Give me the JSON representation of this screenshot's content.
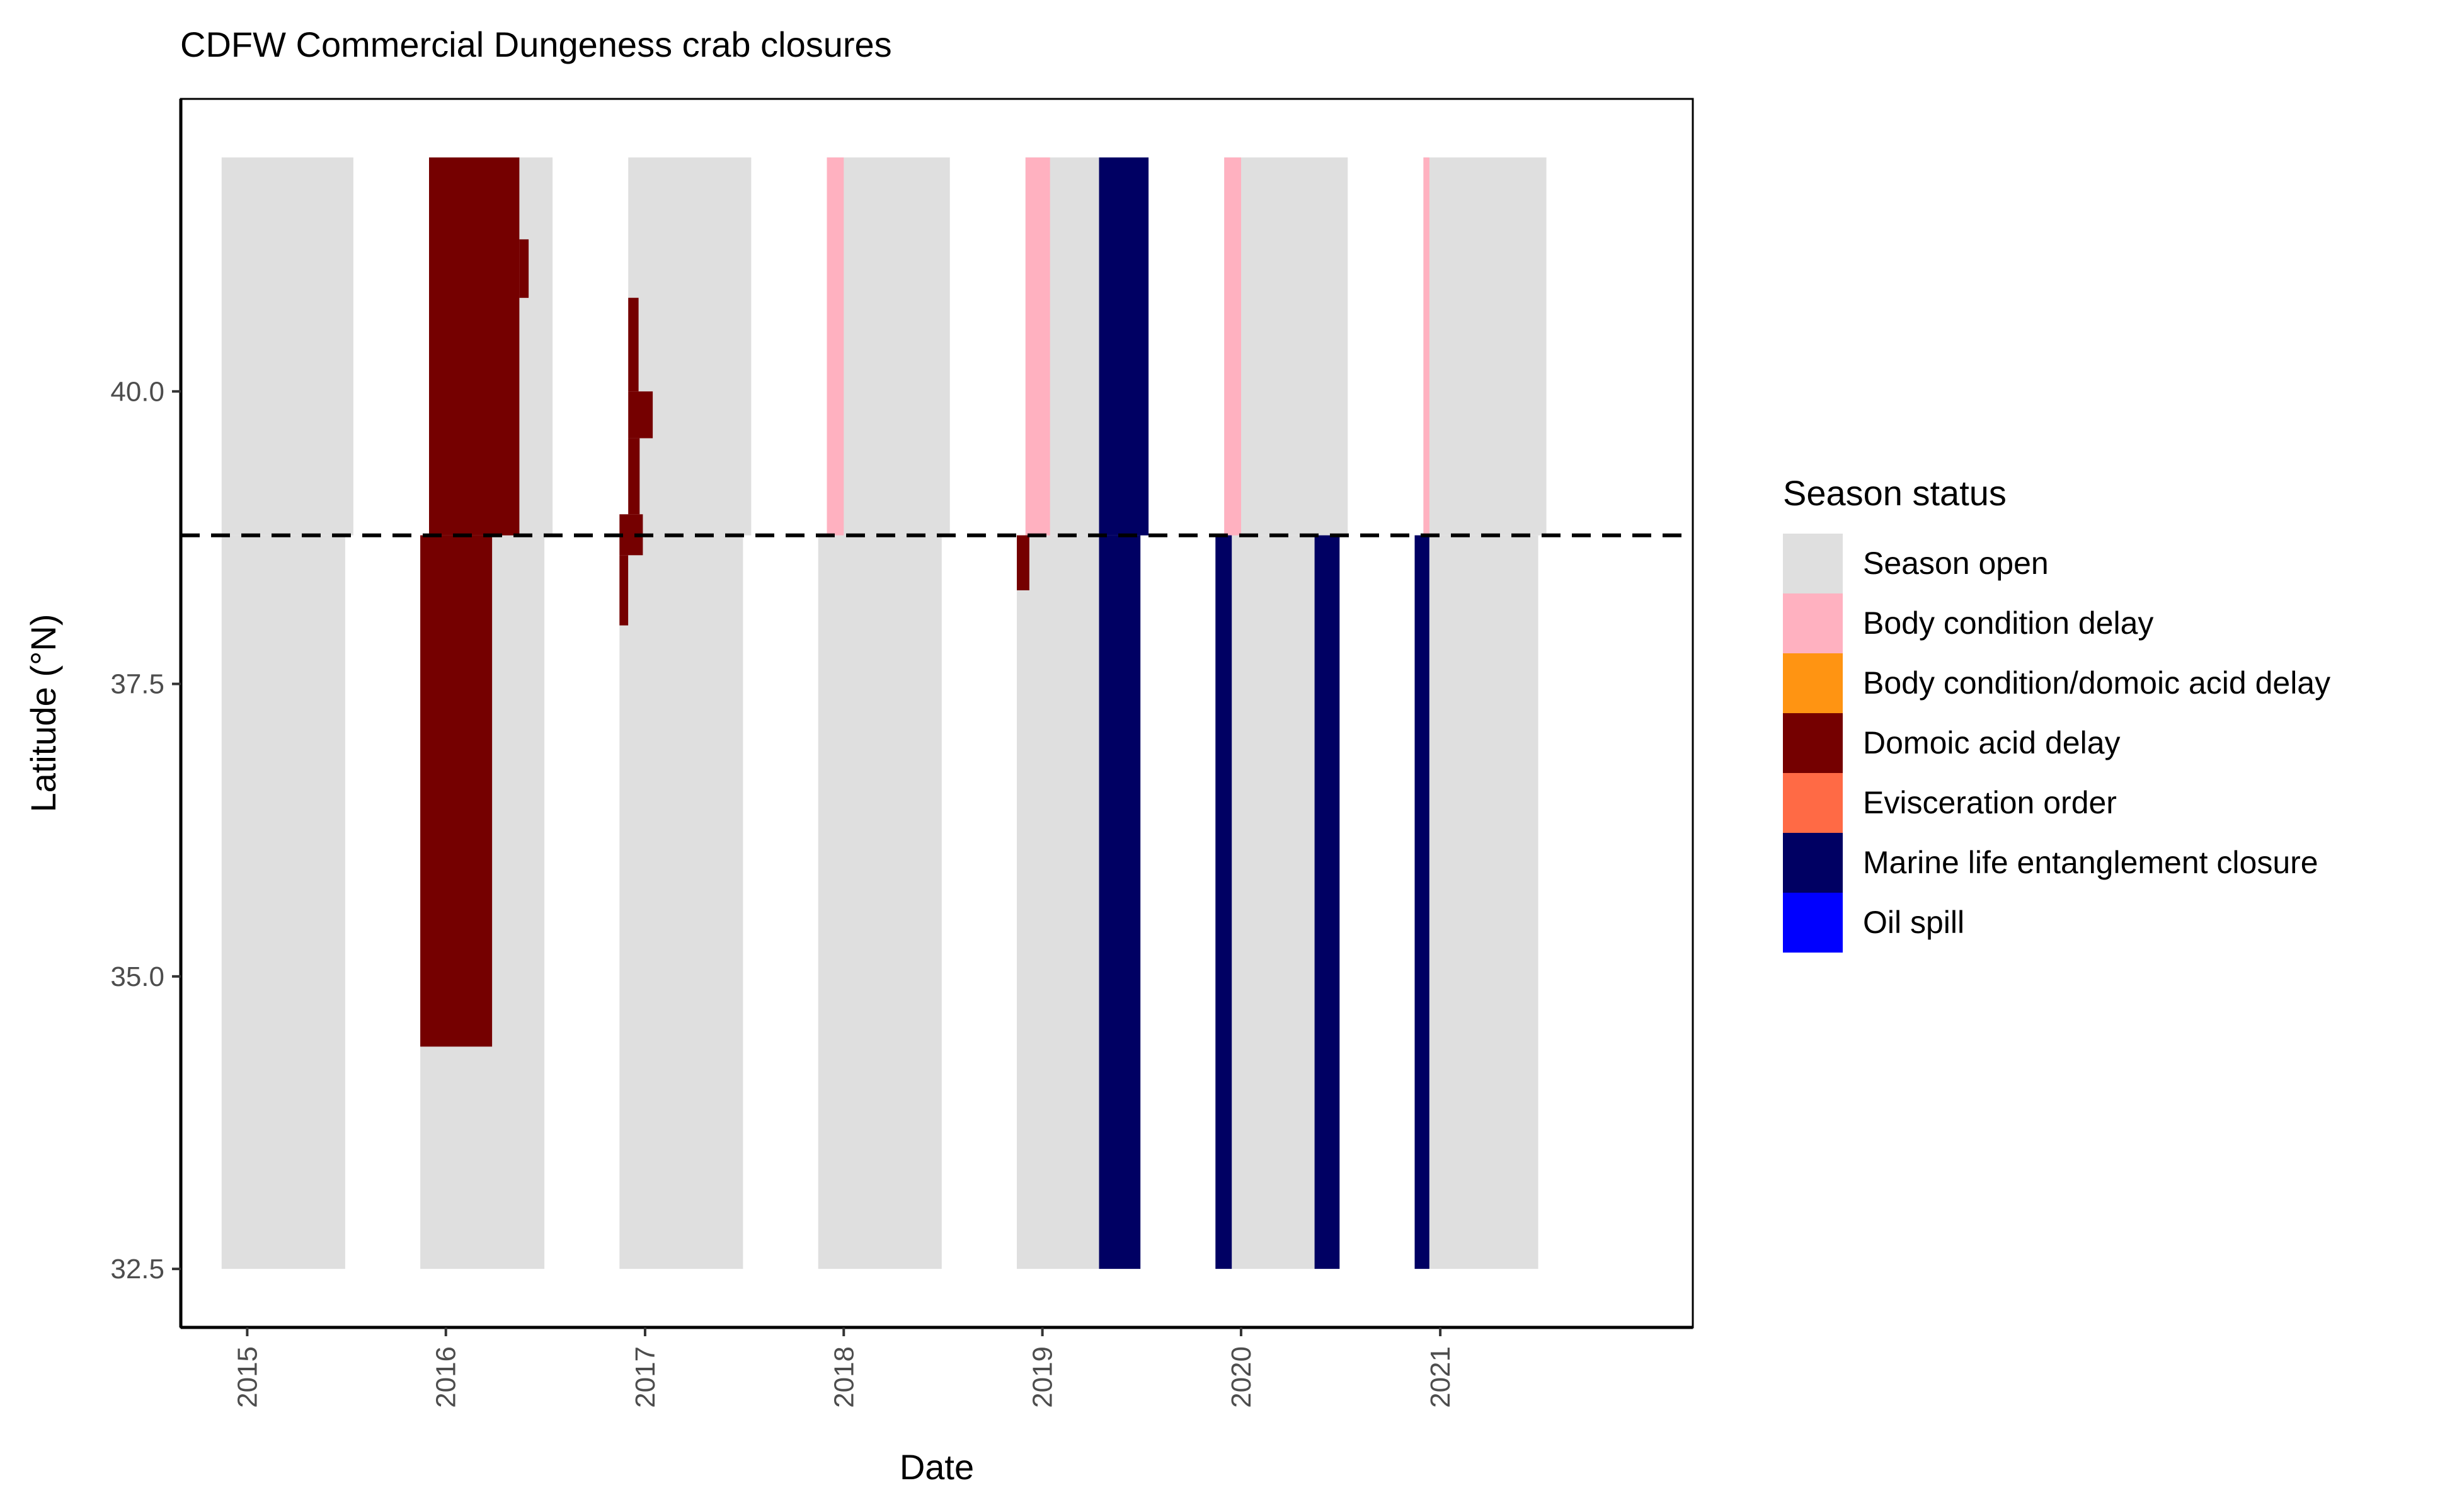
{
  "chart_data": {
    "type": "bar",
    "title": "CDFW Commercial Dungeness crab closures",
    "xlabel": "Date",
    "ylabel": "Latitude (°N)",
    "xlim": [
      "2014-09-01",
      "2022-04-10"
    ],
    "ylim": [
      32.0,
      42.5
    ],
    "x_ticks": [
      "2015",
      "2016",
      "2017",
      "2018",
      "2019",
      "2020",
      "2021"
    ],
    "y_ticks": [
      32.5,
      35.0,
      37.5,
      40.0
    ],
    "y_tick_labels": [
      "32.5",
      "35.0",
      "37.5",
      "40.0"
    ],
    "reference_line": {
      "y": 38.77,
      "style": "dashed"
    },
    "grid": false,
    "legend": {
      "title": "Season status",
      "placement": "right",
      "entries": [
        {
          "label": "Season open",
          "color": "#DFDFDF"
        },
        {
          "label": "Body condition delay",
          "color": "#FFB1C0"
        },
        {
          "label": "Body condition/domoic acid delay",
          "color": "#FF9412"
        },
        {
          "label": "Domoic acid delay",
          "color": "#750000"
        },
        {
          "label": "Evisceration order",
          "color": "#FF6A45"
        },
        {
          "label": "Marine life entanglement closure",
          "color": "#000063"
        },
        {
          "label": "Oil spill",
          "color": "#0000FF"
        }
      ]
    },
    "segments": [
      {
        "status": "Season open",
        "start": "2014-11-15",
        "end": "2015-07-15",
        "lat_min": 38.77,
        "lat_max": 42.0
      },
      {
        "status": "Season open",
        "start": "2014-11-15",
        "end": "2015-06-30",
        "lat_min": 32.5,
        "lat_max": 38.77
      },
      {
        "status": "Season open",
        "start": "2015-12-01",
        "end": "2016-07-15",
        "lat_min": 38.77,
        "lat_max": 42.0
      },
      {
        "status": "Season open",
        "start": "2015-11-15",
        "end": "2016-06-30",
        "lat_min": 32.5,
        "lat_max": 38.77
      },
      {
        "status": "Domoic acid delay",
        "start": "2015-12-01",
        "end": "2016-05-15",
        "lat_min": 38.77,
        "lat_max": 42.0
      },
      {
        "status": "Domoic acid delay",
        "start": "2016-05-15",
        "end": "2016-06-01",
        "lat_min": 40.8,
        "lat_max": 41.3
      },
      {
        "status": "Domoic acid delay",
        "start": "2015-11-15",
        "end": "2016-03-26",
        "lat_min": 34.4,
        "lat_max": 38.77
      },
      {
        "status": "Season open",
        "start": "2016-12-01",
        "end": "2017-07-15",
        "lat_min": 38.77,
        "lat_max": 42.0
      },
      {
        "status": "Season open",
        "start": "2016-11-15",
        "end": "2017-06-30",
        "lat_min": 32.5,
        "lat_max": 38.77
      },
      {
        "status": "Domoic acid delay",
        "start": "2016-12-01",
        "end": "2016-12-20",
        "lat_min": 40.0,
        "lat_max": 40.8
      },
      {
        "status": "Domoic acid delay",
        "start": "2016-12-01",
        "end": "2017-01-15",
        "lat_min": 39.6,
        "lat_max": 40.0
      },
      {
        "status": "Domoic acid delay",
        "start": "2016-12-01",
        "end": "2016-12-22",
        "lat_min": 38.95,
        "lat_max": 39.6
      },
      {
        "status": "Domoic acid delay",
        "start": "2016-11-15",
        "end": "2016-12-28",
        "lat_min": 38.6,
        "lat_max": 38.95
      },
      {
        "status": "Domoic acid delay",
        "start": "2016-11-15",
        "end": "2016-12-01",
        "lat_min": 38.0,
        "lat_max": 38.6
      },
      {
        "status": "Season open",
        "start": "2017-12-01",
        "end": "2018-07-15",
        "lat_min": 38.77,
        "lat_max": 42.0
      },
      {
        "status": "Season open",
        "start": "2017-11-15",
        "end": "2018-06-30",
        "lat_min": 32.5,
        "lat_max": 38.77
      },
      {
        "status": "Body condition delay",
        "start": "2017-12-01",
        "end": "2018-01-01",
        "lat_min": 38.77,
        "lat_max": 42.0
      },
      {
        "status": "Season open",
        "start": "2018-12-01",
        "end": "2019-07-15",
        "lat_min": 38.77,
        "lat_max": 42.0
      },
      {
        "status": "Season open",
        "start": "2018-11-15",
        "end": "2019-06-30",
        "lat_min": 32.5,
        "lat_max": 38.77
      },
      {
        "status": "Body condition delay",
        "start": "2018-12-01",
        "end": "2019-01-15",
        "lat_min": 38.77,
        "lat_max": 42.0
      },
      {
        "status": "Domoic acid delay",
        "start": "2018-11-15",
        "end": "2018-12-08",
        "lat_min": 38.3,
        "lat_max": 38.77
      },
      {
        "status": "Marine life entanglement closure",
        "start": "2019-04-15",
        "end": "2019-07-15",
        "lat_min": 38.77,
        "lat_max": 42.0
      },
      {
        "status": "Marine life entanglement closure",
        "start": "2019-04-15",
        "end": "2019-06-30",
        "lat_min": 32.5,
        "lat_max": 38.77
      },
      {
        "status": "Season open",
        "start": "2019-12-01",
        "end": "2020-07-15",
        "lat_min": 38.77,
        "lat_max": 42.0
      },
      {
        "status": "Season open",
        "start": "2019-11-15",
        "end": "2020-06-30",
        "lat_min": 32.5,
        "lat_max": 38.77
      },
      {
        "status": "Body condition delay",
        "start": "2019-12-01",
        "end": "2020-01-01",
        "lat_min": 38.77,
        "lat_max": 42.0
      },
      {
        "status": "Marine life entanglement closure",
        "start": "2019-11-15",
        "end": "2019-12-15",
        "lat_min": 32.5,
        "lat_max": 38.77
      },
      {
        "status": "Marine life entanglement closure",
        "start": "2020-05-15",
        "end": "2020-06-30",
        "lat_min": 32.5,
        "lat_max": 38.77
      },
      {
        "status": "Season open",
        "start": "2020-12-01",
        "end": "2021-07-15",
        "lat_min": 38.77,
        "lat_max": 42.0
      },
      {
        "status": "Season open",
        "start": "2020-11-15",
        "end": "2021-06-30",
        "lat_min": 32.5,
        "lat_max": 38.77
      },
      {
        "status": "Body condition delay",
        "start": "2020-12-01",
        "end": "2020-12-12",
        "lat_min": 38.77,
        "lat_max": 42.0
      },
      {
        "status": "Marine life entanglement closure",
        "start": "2020-11-15",
        "end": "2020-12-12",
        "lat_min": 32.5,
        "lat_max": 38.77
      }
    ]
  }
}
